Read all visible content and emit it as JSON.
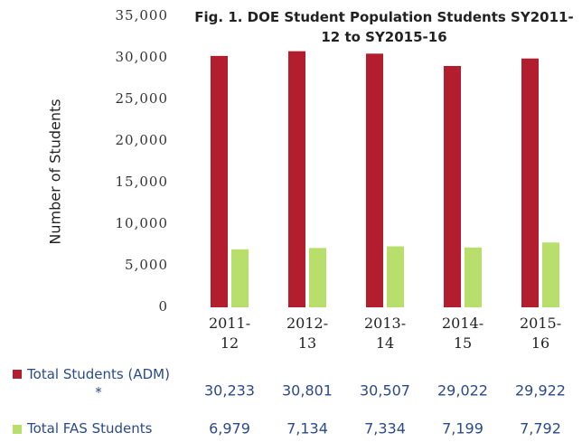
{
  "chart_data": {
    "type": "bar",
    "title": "Fig. 1. DOE Student Population Students SY2011-12 to SY2015-16",
    "y_label": "Number of Students",
    "categories": [
      "2011-12",
      "2012-13",
      "2013-14",
      "2014-15",
      "2015-16"
    ],
    "series": [
      {
        "name": "Total Students (ADM) *",
        "color": "#b31e2e",
        "values": [
          30233,
          30801,
          30507,
          29022,
          29922
        ],
        "value_labels": [
          "30,233",
          "30,801",
          "30,507",
          "29,022",
          "29,922"
        ]
      },
      {
        "name": "Total FAS Students",
        "color": "#b8de6c",
        "values": [
          6979,
          7134,
          7334,
          7199,
          7792
        ],
        "value_labels": [
          "6,979",
          "7,134",
          "7,334",
          "7,199",
          "7,792"
        ]
      }
    ],
    "ylim": [
      0,
      35000
    ],
    "yticks": [
      0,
      {
        "value": 5000,
        "label": "5,000"
      },
      {
        "value": 10000,
        "label": "10,000"
      },
      {
        "value": 15000,
        "label": "15,000"
      },
      {
        "value": 20000,
        "label": "20,000"
      },
      {
        "value": 25000,
        "label": "25,000"
      },
      {
        "value": 30000,
        "label": "30,000"
      },
      {
        "value": 35000,
        "label": "35,000"
      }
    ],
    "grid": false
  }
}
